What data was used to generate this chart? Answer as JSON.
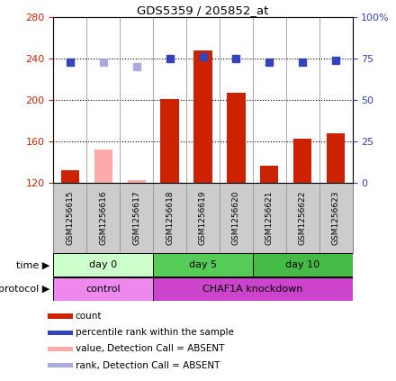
{
  "title": "GDS5359 / 205852_at",
  "samples": [
    "GSM1256615",
    "GSM1256616",
    "GSM1256617",
    "GSM1256618",
    "GSM1256619",
    "GSM1256620",
    "GSM1256621",
    "GSM1256622",
    "GSM1256623"
  ],
  "bar_values": [
    132,
    152,
    122,
    201,
    248,
    207,
    136,
    162,
    168
  ],
  "bar_colors": [
    "#cc2200",
    "#ffaaaa",
    "#ffaaaa",
    "#cc2200",
    "#cc2200",
    "#cc2200",
    "#cc2200",
    "#cc2200",
    "#cc2200"
  ],
  "rank_values": [
    73,
    73,
    70,
    75,
    76,
    75,
    73,
    73,
    74
  ],
  "rank_colors": [
    "#3344bb",
    "#aaaadd",
    "#aaaadd",
    "#3344bb",
    "#3344bb",
    "#3344bb",
    "#3344bb",
    "#3344bb",
    "#3344bb"
  ],
  "ylim_left": [
    120,
    280
  ],
  "ylim_right": [
    0,
    100
  ],
  "yticks_left": [
    120,
    160,
    200,
    240,
    280
  ],
  "yticks_right": [
    0,
    25,
    50,
    75,
    100
  ],
  "time_groups": [
    {
      "label": "day 0",
      "start": 0,
      "end": 3,
      "color": "#ccffcc"
    },
    {
      "label": "day 5",
      "start": 3,
      "end": 6,
      "color": "#55cc55"
    },
    {
      "label": "day 10",
      "start": 6,
      "end": 9,
      "color": "#44bb44"
    }
  ],
  "protocol_groups": [
    {
      "label": "control",
      "start": 0,
      "end": 3,
      "color": "#ee88ee"
    },
    {
      "label": "CHAF1A knockdown",
      "start": 3,
      "end": 9,
      "color": "#cc44cc"
    }
  ],
  "legend_items": [
    {
      "color": "#cc2200",
      "label": "count"
    },
    {
      "color": "#3344bb",
      "label": "percentile rank within the sample"
    },
    {
      "color": "#ffaaaa",
      "label": "value, Detection Call = ABSENT"
    },
    {
      "color": "#aaaadd",
      "label": "rank, Detection Call = ABSENT"
    }
  ],
  "time_label": "time",
  "protocol_label": "protocol",
  "bar_width": 0.55,
  "rank_marker_size": 6,
  "bg_color": "#ffffff",
  "plot_bg_color": "#ffffff",
  "label_bg_color": "#cccccc",
  "grid_color": "#000000",
  "left_axis_color": "#cc2200",
  "right_axis_color": "#3344bb"
}
